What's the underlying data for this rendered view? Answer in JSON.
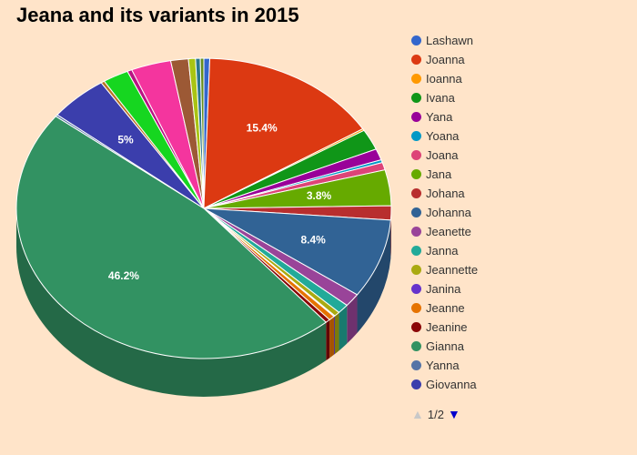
{
  "chart_data": {
    "type": "pie",
    "title": "Jeana and its variants in 2015",
    "slices": [
      {
        "name": "Lashawn",
        "value": 0.5,
        "color": "#3366cc",
        "label": ""
      },
      {
        "name": "Joanna",
        "value": 15.4,
        "color": "#dc3912",
        "label": "15.4%"
      },
      {
        "name": "Ioanna",
        "value": 0.2,
        "color": "#ff9900",
        "label": ""
      },
      {
        "name": "Ivana",
        "value": 2.2,
        "color": "#109618",
        "label": ""
      },
      {
        "name": "Yana",
        "value": 1.2,
        "color": "#990099",
        "label": ""
      },
      {
        "name": "Yoana",
        "value": 0.3,
        "color": "#0099c6",
        "label": ""
      },
      {
        "name": "Joana",
        "value": 0.8,
        "color": "#dd4477",
        "label": ""
      },
      {
        "name": "Jana",
        "value": 3.8,
        "color": "#66aa00",
        "label": "3.8%"
      },
      {
        "name": "Johana",
        "value": 1.5,
        "color": "#b82e2e",
        "label": ""
      },
      {
        "name": "Johanna",
        "value": 8.4,
        "color": "#316395",
        "label": "8.4%"
      },
      {
        "name": "Jeanette",
        "value": 1.4,
        "color": "#994499",
        "label": ""
      },
      {
        "name": "Janna",
        "value": 1.0,
        "color": "#22aa99",
        "label": ""
      },
      {
        "name": "Jeannette",
        "value": 0.5,
        "color": "#aaaa11",
        "label": ""
      },
      {
        "name": "Janina",
        "value": 0.1,
        "color": "#6633cc",
        "label": ""
      },
      {
        "name": "Jeanne",
        "value": 0.5,
        "color": "#e67300",
        "label": ""
      },
      {
        "name": "Jeanine",
        "value": 0.4,
        "color": "#8b0707",
        "label": ""
      },
      {
        "name": "Gianna",
        "value": 46.2,
        "color": "#329262",
        "label": "46.2%"
      },
      {
        "name": "Yanna",
        "value": 0.2,
        "color": "#5574a6",
        "label": ""
      },
      {
        "name": "Giovanna",
        "value": 5.0,
        "color": "#3b3eac",
        "label": "5%"
      },
      {
        "name": "",
        "value": 0.3,
        "color": "#b77322",
        "label": ""
      },
      {
        "name": "",
        "value": 2.2,
        "color": "#16d620",
        "label": ""
      },
      {
        "name": "",
        "value": 0.4,
        "color": "#b91383",
        "label": ""
      },
      {
        "name": "",
        "value": 3.4,
        "color": "#f4359e",
        "label": ""
      },
      {
        "name": "",
        "value": 1.5,
        "color": "#9c5935",
        "label": ""
      },
      {
        "name": "",
        "value": 0.6,
        "color": "#a9c413",
        "label": ""
      },
      {
        "name": "",
        "value": 0.4,
        "color": "#2a778d",
        "label": ""
      },
      {
        "name": "",
        "value": 0.3,
        "color": "#668d1c",
        "label": ""
      }
    ],
    "legend": {
      "placement": "right",
      "page_text": "1/2"
    }
  }
}
